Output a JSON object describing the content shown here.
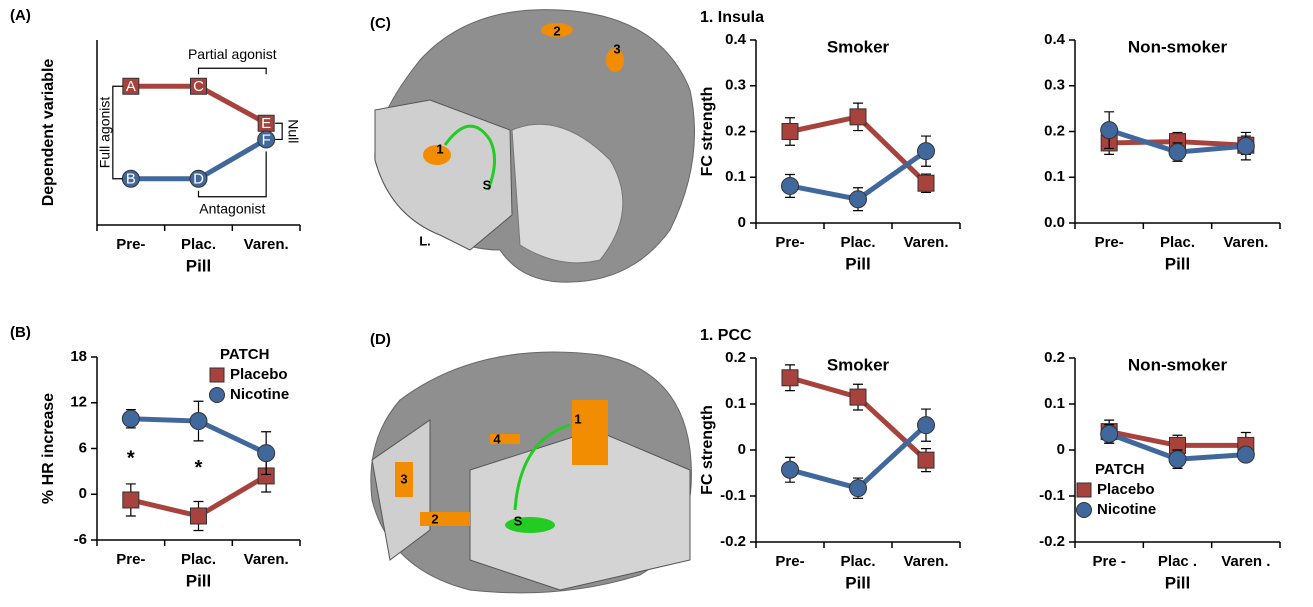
{
  "chart_data": [
    {
      "type": "line",
      "panel": "(A)",
      "ylabel": "Dependent variable",
      "xlabel": "Pill",
      "categories": [
        "Pre-",
        "Plac.",
        "Varen."
      ],
      "ylim": [
        0,
        4
      ],
      "series": [
        {
          "color": "#a8423c",
          "marker": "square",
          "values": [
            3,
            3,
            2.2
          ],
          "point_labels": [
            "A",
            "C",
            "E"
          ]
        },
        {
          "color": "#41689c",
          "marker": "circle",
          "values": [
            1,
            1,
            1.85
          ],
          "point_labels": [
            "B",
            "D",
            "F"
          ]
        }
      ],
      "annotations": [
        "Partial agonist",
        "Full agonist",
        "Null",
        "Antagonist"
      ]
    },
    {
      "type": "line",
      "panel": "(B)",
      "ylabel": "% HR increase",
      "xlabel": "Pill",
      "categories": [
        "Pre-",
        "Plac.",
        "Varen."
      ],
      "ylim": [
        -6,
        18
      ],
      "yticks": [
        -6,
        0,
        6,
        12,
        18
      ],
      "legend": {
        "title": "PATCH",
        "position": "upper right"
      },
      "series": [
        {
          "name": "Placebo",
          "color": "#a8423c",
          "marker": "square",
          "values": [
            -0.75,
            -2.85,
            2.4
          ],
          "errors": [
            2.1,
            1.9,
            2.1
          ]
        },
        {
          "name": "Nicotine",
          "color": "#41689c",
          "marker": "circle",
          "values": [
            9.9,
            9.6,
            5.4
          ],
          "errors": [
            1.2,
            2.6,
            2.8
          ]
        }
      ],
      "annotations": [
        "*",
        "*"
      ]
    },
    {
      "type": "line",
      "heading": "1. Insula",
      "title": "Smoker",
      "ylabel": "FC strength",
      "xlabel": "Pill",
      "categories": [
        "Pre-",
        "Plac.",
        "Varen."
      ],
      "ylim": [
        0,
        0.4
      ],
      "yticks": [
        0,
        0.1,
        0.2,
        0.3,
        0.4
      ],
      "series": [
        {
          "color": "#a8423c",
          "marker": "square",
          "values": [
            0.2,
            0.232,
            0.087
          ],
          "errors": [
            0.03,
            0.03,
            0.02
          ]
        },
        {
          "color": "#41689c",
          "marker": "circle",
          "values": [
            0.081,
            0.052,
            0.157
          ],
          "errors": [
            0.025,
            0.025,
            0.033
          ]
        }
      ]
    },
    {
      "type": "line",
      "title": "Non-smoker",
      "xlabel": "Pill",
      "categories": [
        "Pre-",
        "Plac.",
        "Varen."
      ],
      "ylim": [
        0,
        0.4
      ],
      "yticks": [
        {
          "value": 0,
          "label": "0.0"
        },
        0.1,
        0.2,
        0.3,
        0.4
      ],
      "series": [
        {
          "color": "#a8423c",
          "marker": "square",
          "values": [
            0.175,
            0.178,
            0.17
          ],
          "errors": [
            0.025,
            0.02,
            0.02
          ]
        },
        {
          "color": "#41689c",
          "marker": "circle",
          "values": [
            0.203,
            0.155,
            0.168
          ],
          "errors": [
            0.04,
            0.02,
            0.03
          ]
        }
      ]
    },
    {
      "type": "line",
      "heading": "1. PCC",
      "title": "Smoker",
      "ylabel": "FC strength",
      "xlabel": "Pill",
      "categories": [
        "Pre-",
        "Plac.",
        "Varen."
      ],
      "ylim": [
        -0.2,
        0.2
      ],
      "yticks": [
        -0.2,
        -0.1,
        0,
        0.1,
        0.2
      ],
      "series": [
        {
          "color": "#a8423c",
          "marker": "square",
          "values": [
            0.157,
            0.115,
            -0.022
          ],
          "errors": [
            0.028,
            0.028,
            0.025
          ]
        },
        {
          "color": "#41689c",
          "marker": "circle",
          "values": [
            -0.043,
            -0.083,
            0.054
          ],
          "errors": [
            0.027,
            0.022,
            0.035
          ]
        }
      ]
    },
    {
      "type": "line",
      "title": "Non-smoker",
      "xlabel": "Pill",
      "categories": [
        "Pre -",
        "Plac .",
        "Varen ."
      ],
      "ylim": [
        -0.2,
        0.2
      ],
      "yticks": [
        -0.2,
        -0.1,
        0,
        0.1,
        0.2
      ],
      "legend": {
        "title": "PATCH",
        "position": "lower left"
      },
      "series": [
        {
          "name": "Placebo",
          "color": "#a8423c",
          "marker": "square",
          "values": [
            0.04,
            0.01,
            0.01
          ],
          "errors": [
            0.025,
            0.022,
            0.028
          ]
        },
        {
          "name": "Nicotine",
          "color": "#41689c",
          "marker": "circle",
          "values": [
            0.035,
            -0.02,
            -0.01
          ],
          "errors": [
            0.02,
            0.02,
            0.015
          ]
        }
      ]
    }
  ],
  "images": [
    {
      "panel": "(C)",
      "labels": [
        "1",
        "2",
        "3",
        "S",
        "L."
      ]
    },
    {
      "panel": "(D)",
      "labels": [
        "1",
        "2",
        "3",
        "4",
        "S"
      ]
    }
  ]
}
